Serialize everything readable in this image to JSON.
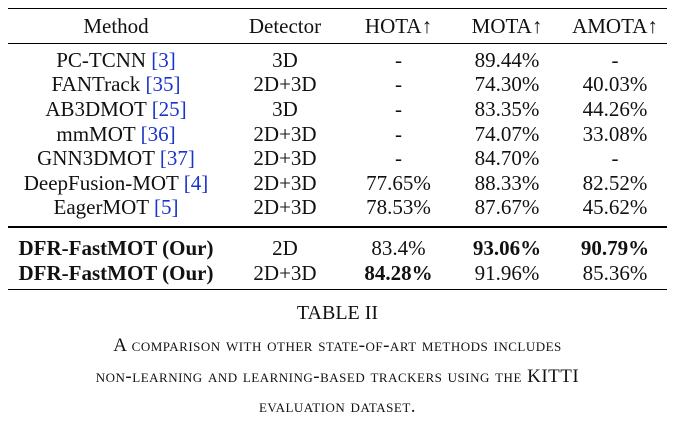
{
  "table": {
    "headers": [
      "Method",
      "Detector",
      "HOTA↑",
      "MOTA↑",
      "AMOTA↑"
    ],
    "rows": [
      {
        "method": "PC-TCNN ",
        "ref": "[3]",
        "detector": "3D",
        "hota": "-",
        "mota": "89.44%",
        "amota": "-"
      },
      {
        "method": "FANTrack ",
        "ref": "[35]",
        "detector": "2D+3D",
        "hota": "-",
        "mota": "74.30%",
        "amota": "40.03%"
      },
      {
        "method": "AB3DMOT ",
        "ref": "[25]",
        "detector": "3D",
        "hota": "-",
        "mota": "83.35%",
        "amota": "44.26%"
      },
      {
        "method": "mmMOT ",
        "ref": "[36]",
        "detector": "2D+3D",
        "hota": "-",
        "mota": "74.07%",
        "amota": "33.08%"
      },
      {
        "method": "GNN3DMOT ",
        "ref": "[37]",
        "detector": "2D+3D",
        "hota": "-",
        "mota": "84.70%",
        "amota": "-"
      },
      {
        "method": "DeepFusion-MOT ",
        "ref": "[4]",
        "detector": "2D+3D",
        "hota": "77.65%",
        "mota": "88.33%",
        "amota": "82.52%"
      },
      {
        "method": "EagerMOT ",
        "ref": "[5]",
        "detector": "2D+3D",
        "hota": "78.53%",
        "mota": "87.67%",
        "amota": "45.62%"
      }
    ],
    "ours": [
      {
        "method": "DFR-FastMOT (Our)",
        "detector": "2D",
        "hota": "83.4%",
        "mota": "93.06%",
        "amota": "90.79%"
      },
      {
        "method": "DFR-FastMOT (Our)",
        "detector": "2D+3D",
        "hota": "84.28%",
        "mota": "91.96%",
        "amota": "85.36%"
      }
    ]
  },
  "caption": {
    "title": "TABLE II",
    "line1": "A comparison with other state-of-art methods includes",
    "line2": "non-learning and learning-based trackers using the KITTI",
    "line3": "evaluation dataset."
  }
}
